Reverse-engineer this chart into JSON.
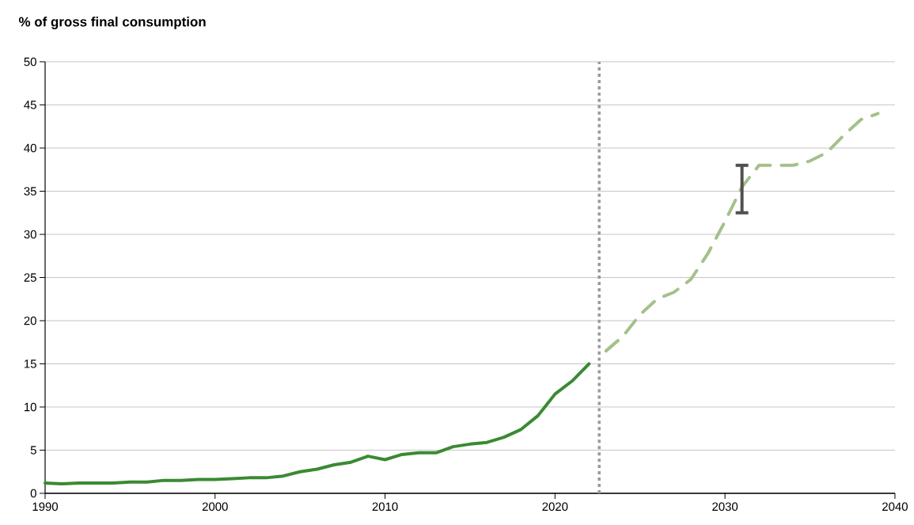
{
  "chart_data": {
    "type": "line",
    "ylabel": "% of gross final consumption",
    "xlim": [
      1990,
      2040
    ],
    "xticks": [
      1990,
      2000,
      2010,
      2020,
      2030,
      2040
    ],
    "ylim": [
      0,
      50
    ],
    "yticks": [
      0,
      5,
      10,
      15,
      20,
      25,
      30,
      35,
      40,
      45,
      50
    ],
    "grid": "y",
    "marker": "none",
    "ref_lines": [
      {
        "axis": "x",
        "value": 2022.6,
        "color": "#9a9a9a",
        "line_style": "dotted"
      }
    ],
    "series": [
      {
        "color": "#3a8a32",
        "line_style": "solid",
        "x": [
          1990,
          1991,
          1992,
          1993,
          1994,
          1995,
          1996,
          1997,
          1998,
          1999,
          2000,
          2001,
          2002,
          2003,
          2004,
          2005,
          2006,
          2007,
          2008,
          2009,
          2010,
          2011,
          2012,
          2013,
          2014,
          2015,
          2016,
          2017,
          2018,
          2019,
          2020,
          2021,
          2022
        ],
        "values": [
          1.2,
          1.1,
          1.2,
          1.2,
          1.2,
          1.3,
          1.3,
          1.5,
          1.5,
          1.6,
          1.6,
          1.7,
          1.8,
          1.8,
          2.0,
          2.5,
          2.8,
          3.3,
          3.6,
          4.3,
          3.9,
          4.5,
          4.7,
          4.7,
          5.4,
          5.7,
          5.9,
          6.5,
          7.4,
          9.0,
          11.5,
          13.0,
          15.0
        ]
      },
      {
        "color": "#a5c08a",
        "line_style": "dashed",
        "x": [
          2023,
          2024,
          2025,
          2026,
          2027,
          2028,
          2029,
          2030,
          2031,
          2032,
          2033,
          2034,
          2035,
          2036,
          2037,
          2038,
          2039
        ],
        "values": [
          16.5,
          18.2,
          20.7,
          22.5,
          23.3,
          24.8,
          27.8,
          31.5,
          35.5,
          38,
          38,
          38,
          38.5,
          39.5,
          41.5,
          43.3,
          44
        ],
        "errors": [
          null,
          null,
          null,
          null,
          null,
          null,
          null,
          null,
          [
            32.5,
            38
          ],
          null,
          null,
          null,
          null,
          null,
          null,
          null,
          null
        ]
      }
    ]
  }
}
